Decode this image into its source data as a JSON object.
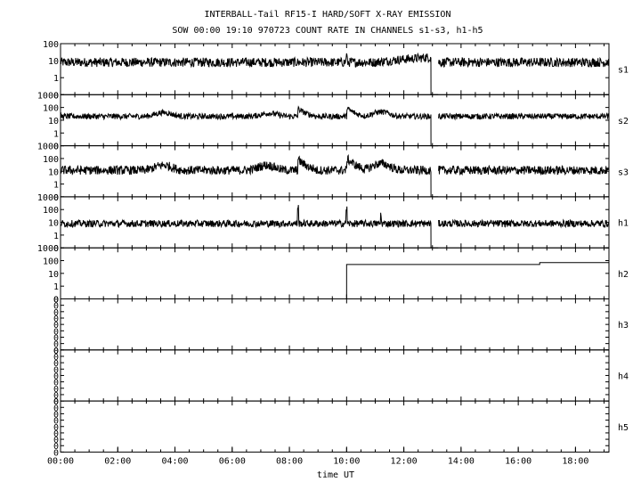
{
  "title_line1": "INTERBALL-Tail RF15-I HARD/SOFT X-RAY EMISSION",
  "title_line2": "SOW 00:00 19:10 970723  COUNT RATE IN CHANNELS s1-s3, h1-h5",
  "chart_data": {
    "type": "line",
    "title": "INTERBALL-Tail RF15-I HARD/SOFT X-RAY EMISSION",
    "subtitle": "SOW 00:00 19:10 970723  COUNT RATE IN CHANNELS s1-s3, h1-h5",
    "xlabel": "time UT",
    "x_ticks": [
      "00:00",
      "02:00",
      "04:00",
      "06:00",
      "08:00",
      "10:00",
      "12:00",
      "14:00",
      "16:00",
      "18:00"
    ],
    "xlim_hours": [
      0,
      19.17
    ],
    "y_scale": "log",
    "grid": false,
    "panels": [
      {
        "channel": "s1",
        "y_ticks": [
          "100",
          "10",
          "1",
          "0"
        ],
        "base": 8,
        "noise": 0.55,
        "features": [
          {
            "type": "drift",
            "from": 8,
            "to": 16,
            "at": [
              11.0,
              13.0
            ]
          },
          {
            "type": "spike",
            "at": 10.0,
            "to": 20
          },
          {
            "type": "gap",
            "from": 12.95,
            "to": 13.2
          }
        ]
      },
      {
        "channel": "s2",
        "y_ticks": [
          "1000",
          "100",
          "10",
          "1",
          "0"
        ],
        "base": 20,
        "noise": 0.45,
        "features": [
          {
            "type": "bump",
            "at": 3.6,
            "to": 40
          },
          {
            "type": "bump",
            "at": 7.3,
            "to": 35
          },
          {
            "type": "peak",
            "at": 8.3,
            "to": 80
          },
          {
            "type": "peak",
            "at": 10.0,
            "to": 90
          },
          {
            "type": "bump",
            "at": 11.2,
            "to": 45
          },
          {
            "type": "gap",
            "from": 12.95,
            "to": 13.2
          }
        ]
      },
      {
        "channel": "s3",
        "y_ticks": [
          "1000",
          "100",
          "10",
          "1",
          "0"
        ],
        "base": 12,
        "noise": 0.7,
        "features": [
          {
            "type": "bump",
            "at": 3.6,
            "to": 30
          },
          {
            "type": "bump",
            "at": 7.2,
            "to": 30
          },
          {
            "type": "peak",
            "at": 8.3,
            "to": 80
          },
          {
            "type": "peak",
            "at": 10.0,
            "to": 100
          },
          {
            "type": "bump",
            "at": 11.2,
            "to": 40
          },
          {
            "type": "gap",
            "from": 12.95,
            "to": 13.2
          }
        ]
      },
      {
        "channel": "h1",
        "y_ticks": [
          "1000",
          "100",
          "10",
          "1",
          "0"
        ],
        "base": 8,
        "noise": 0.55,
        "features": [
          {
            "type": "spike",
            "at": 8.3,
            "to": 150
          },
          {
            "type": "spike",
            "at": 10.0,
            "to": 120
          },
          {
            "type": "spike",
            "at": 11.2,
            "to": 40
          },
          {
            "type": "gap",
            "from": 12.95,
            "to": 13.2
          }
        ]
      },
      {
        "channel": "h2",
        "y_ticks": [
          "1000",
          "100",
          "10",
          "1",
          "0"
        ],
        "steps": [
          {
            "from": 0,
            "to": 10.0,
            "value": null
          },
          {
            "from": 10.0,
            "to": 16.75,
            "value": 50
          },
          {
            "from": 16.75,
            "to": 19.17,
            "value": 70
          }
        ]
      },
      {
        "channel": "h3",
        "y_ticks": [
          "0",
          "0",
          "0",
          "0",
          "0",
          "0",
          "0",
          "0",
          "0"
        ],
        "flat": true
      },
      {
        "channel": "h4",
        "y_ticks": [
          "0",
          "0",
          "0",
          "0",
          "0",
          "0",
          "0",
          "0",
          "0"
        ],
        "flat": true
      },
      {
        "channel": "h5",
        "y_ticks": [
          "0",
          "0",
          "0",
          "0",
          "0",
          "0",
          "0",
          "0",
          "0"
        ],
        "flat": true
      }
    ]
  }
}
